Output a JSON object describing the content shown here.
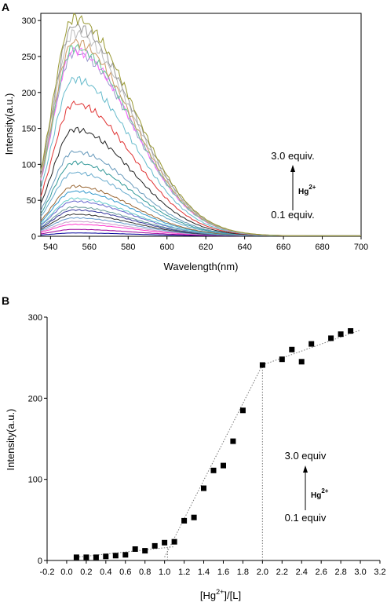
{
  "chart_data": [
    {
      "panel_label": "A",
      "type": "line",
      "xlabel": "Wavelength(nm)",
      "ylabel": "Intensity(a.u.)",
      "xlim": [
        535,
        700
      ],
      "ylim": [
        0,
        310
      ],
      "xticks": [
        540,
        560,
        580,
        600,
        620,
        640,
        660,
        680,
        700
      ],
      "yticks": [
        0,
        50,
        100,
        150,
        200,
        250,
        300
      ],
      "peak_wavelength": 552,
      "peak_intensities": [
        4,
        9,
        16,
        20,
        25,
        30,
        36,
        40,
        48,
        52,
        62,
        69,
        88,
        102,
        117,
        148,
        184,
        218,
        255,
        258,
        262,
        270,
        282,
        292,
        303
      ],
      "series_colors": [
        "#000099",
        "#990099",
        "#ff33cc",
        "#cc99cc",
        "#6699cc",
        "#333333",
        "#333399",
        "#669999",
        "#6666cc",
        "#66cccc",
        "#3399cc",
        "#996633",
        "#66aacc",
        "#339999",
        "#6699bb",
        "#222222",
        "#e03333",
        "#66bbcc",
        "#9999cc",
        "#ff66ff",
        "#66cc99",
        "#cc9966",
        "#bbbbbb",
        "#999999",
        "#999933"
      ],
      "annotation": {
        "top": "3.0 equiv.",
        "ion": "Hg",
        "charge": "2+",
        "bottom": "0.1 equiv."
      }
    },
    {
      "panel_label": "B",
      "type": "scatter",
      "xlabel_parts": {
        "pre": "[Hg",
        "sup": "2+",
        "post": "]/[L]"
      },
      "ylabel": "Intensity(a.u.)",
      "xlim": [
        -0.2,
        3.2
      ],
      "ylim": [
        0,
        300
      ],
      "xticks": [
        "-0.2",
        "0.0",
        "0.2",
        "0.4",
        "0.6",
        "0.8",
        "1.0",
        "1.2",
        "1.4",
        "1.6",
        "1.8",
        "2.0",
        "2.2",
        "2.4",
        "2.6",
        "2.8",
        "3.0",
        "3.2"
      ],
      "yticks": [
        0,
        100,
        200,
        300
      ],
      "x": [
        0.1,
        0.2,
        0.3,
        0.4,
        0.5,
        0.6,
        0.7,
        0.8,
        0.9,
        1.0,
        1.1,
        1.2,
        1.3,
        1.4,
        1.5,
        1.6,
        1.7,
        1.8,
        2.0,
        2.2,
        2.3,
        2.4,
        2.5,
        2.7,
        2.8,
        2.9
      ],
      "y": [
        4,
        4,
        4,
        5,
        6,
        7,
        14,
        12,
        18,
        22,
        23,
        49,
        53,
        89,
        111,
        117,
        147,
        185,
        241,
        248,
        260,
        245,
        267,
        274,
        279,
        283
      ],
      "fit_lines": [
        [
          [
            0.1,
            4
          ],
          [
            1.1,
            17
          ]
        ],
        [
          [
            1.0,
            4
          ],
          [
            2.0,
            241
          ]
        ],
        [
          [
            2.0,
            241
          ],
          [
            3.0,
            284
          ]
        ]
      ],
      "vertical_guides": [
        [
          1.03,
          0,
          17
        ],
        [
          2.0,
          0,
          241
        ]
      ],
      "annotation": {
        "top": "3.0 equiv",
        "ion": "Hg",
        "charge": "2+",
        "bottom": "0.1 equiv"
      }
    }
  ]
}
